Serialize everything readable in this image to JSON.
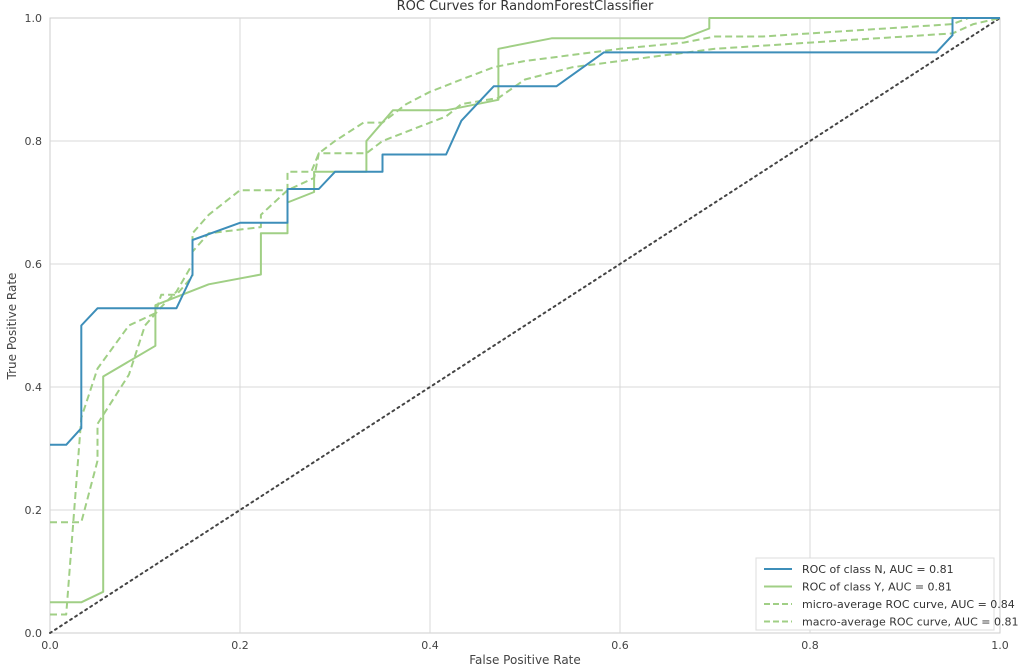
{
  "chart_data": {
    "type": "line",
    "title": "ROC Curves for RandomForestClassifier",
    "xlabel": "False Positive Rate",
    "ylabel": "True Positive Rate",
    "xlim": [
      0,
      1
    ],
    "ylim": [
      0,
      1
    ],
    "xticks": [
      "0.0",
      "0.2",
      "0.4",
      "0.6",
      "0.8",
      "1.0"
    ],
    "yticks": [
      "0.0",
      "0.2",
      "0.4",
      "0.6",
      "0.8",
      "1.0"
    ],
    "grid": true,
    "legend_position": "lower-right",
    "series": [
      {
        "name": "ROC of class N, AUC = 0.81",
        "color": "#3d8eb9",
        "style": "solid",
        "x": [
          0,
          0.017,
          0.033,
          0.033,
          0.05,
          0.117,
          0.133,
          0.15,
          0.15,
          0.2,
          0.25,
          0.25,
          0.283,
          0.3,
          0.35,
          0.35,
          0.417,
          0.433,
          0.467,
          0.533,
          0.583,
          0.933,
          0.95,
          0.95,
          1.0
        ],
        "y": [
          0.306,
          0.306,
          0.333,
          0.5,
          0.528,
          0.528,
          0.528,
          0.583,
          0.639,
          0.667,
          0.667,
          0.722,
          0.722,
          0.75,
          0.75,
          0.778,
          0.778,
          0.833,
          0.889,
          0.889,
          0.944,
          0.944,
          0.972,
          1.0,
          1.0
        ]
      },
      {
        "name": "ROC of class Y, AUC = 0.81",
        "color": "#a0cf85",
        "style": "solid",
        "x": [
          0,
          0.033,
          0.056,
          0.056,
          0.111,
          0.111,
          0.167,
          0.222,
          0.222,
          0.25,
          0.25,
          0.278,
          0.278,
          0.333,
          0.333,
          0.361,
          0.417,
          0.472,
          0.472,
          0.528,
          0.667,
          0.694,
          0.694,
          1.0
        ],
        "y": [
          0.05,
          0.05,
          0.067,
          0.417,
          0.467,
          0.533,
          0.567,
          0.583,
          0.65,
          0.65,
          0.7,
          0.717,
          0.75,
          0.75,
          0.8,
          0.85,
          0.85,
          0.867,
          0.95,
          0.967,
          0.967,
          0.983,
          1.0,
          1.0
        ]
      },
      {
        "name": "micro-average ROC curve, AUC = 0.84",
        "color": "#a0cf85",
        "style": "dashed",
        "x": [
          0,
          0.033,
          0.05,
          0.05,
          0.083,
          0.1,
          0.117,
          0.133,
          0.15,
          0.15,
          0.167,
          0.2,
          0.25,
          0.25,
          0.275,
          0.283,
          0.3,
          0.33,
          0.35,
          0.375,
          0.4,
          0.417,
          0.433,
          0.45,
          0.467,
          0.5,
          0.55,
          0.6,
          0.667,
          0.7,
          0.75,
          0.8,
          0.85,
          0.9,
          0.95,
          0.967,
          1.0
        ],
        "y": [
          0.18,
          0.18,
          0.28,
          0.34,
          0.42,
          0.5,
          0.53,
          0.555,
          0.6,
          0.65,
          0.68,
          0.72,
          0.72,
          0.75,
          0.75,
          0.78,
          0.8,
          0.83,
          0.83,
          0.86,
          0.88,
          0.89,
          0.9,
          0.91,
          0.92,
          0.93,
          0.94,
          0.95,
          0.96,
          0.97,
          0.97,
          0.975,
          0.98,
          0.985,
          0.99,
          1.0,
          1.0
        ]
      },
      {
        "name": "macro-average ROC curve, AUC = 0.81",
        "color": "#a0cf85",
        "style": "dashed",
        "x": [
          0,
          0.017,
          0.033,
          0.05,
          0.083,
          0.111,
          0.117,
          0.133,
          0.15,
          0.15,
          0.167,
          0.222,
          0.222,
          0.25,
          0.278,
          0.283,
          0.333,
          0.35,
          0.417,
          0.433,
          0.472,
          0.5,
          0.55,
          0.6,
          0.65,
          0.7,
          0.75,
          0.8,
          0.85,
          0.9,
          0.95,
          0.972,
          1.0
        ],
        "y": [
          0.03,
          0.03,
          0.35,
          0.43,
          0.5,
          0.52,
          0.55,
          0.55,
          0.58,
          0.62,
          0.65,
          0.66,
          0.68,
          0.72,
          0.74,
          0.78,
          0.78,
          0.8,
          0.84,
          0.86,
          0.87,
          0.9,
          0.92,
          0.93,
          0.94,
          0.95,
          0.955,
          0.96,
          0.965,
          0.97,
          0.975,
          0.99,
          1.0
        ]
      }
    ],
    "reference_line": {
      "x": [
        0,
        1
      ],
      "y": [
        0,
        1
      ],
      "color": "#444444",
      "style": "dotted"
    }
  }
}
